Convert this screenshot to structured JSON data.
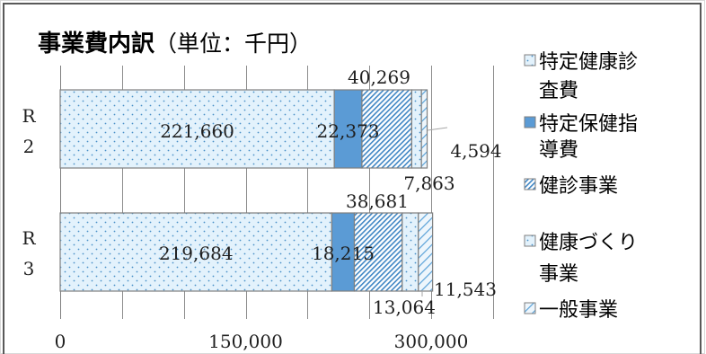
{
  "chart_data": {
    "type": "bar",
    "orientation": "horizontal",
    "stacked": true,
    "title_main": "事業費内訳",
    "title_unit": "（単位：千円）",
    "categories": [
      {
        "label_line1": "R",
        "label_line2": "2"
      },
      {
        "label_line1": "R",
        "label_line2": "3"
      }
    ],
    "series": [
      {
        "name": "特定健康診査費",
        "legend_line1": "特定健康診",
        "legend_line2": "査費",
        "pattern": "dots",
        "color": "#d7ecf9",
        "values": [
          221660,
          219684
        ]
      },
      {
        "name": "特定保健指導費",
        "legend_line1": "特定保健指",
        "legend_line2": "導費",
        "pattern": "solid",
        "color": "#5b9bd5",
        "values": [
          22373,
          18215
        ]
      },
      {
        "name": "健診事業",
        "legend_line1": "健診事業",
        "legend_line2": "",
        "pattern": "diagonal",
        "color": "#4a90c8",
        "values": [
          40269,
          38681
        ]
      },
      {
        "name": "健康づくり事業",
        "legend_line1": "健康づくり",
        "legend_line2": "事業",
        "pattern": "dots",
        "color": "#d7ecf9",
        "values": [
          7863,
          13064
        ]
      },
      {
        "name": "一般事業",
        "legend_line1": "一般事業",
        "legend_line2": "",
        "pattern": "diagonal-light",
        "color": "#5ba3d9",
        "values": [
          4594,
          11543
        ]
      }
    ],
    "data_labels": [
      [
        "221,660",
        "22,373",
        "40,269",
        "7,863",
        "4,594"
      ],
      [
        "219,684",
        "18,215",
        "38,681",
        "13,064",
        "11,543"
      ]
    ],
    "xaxis": {
      "min": 0,
      "max": 350000,
      "tick_values": [
        0,
        150000,
        300000
      ],
      "tick_labels": [
        "0",
        "150,000",
        "300,000"
      ],
      "grid_step": 50000
    },
    "grid": true,
    "legend_position": "right"
  }
}
